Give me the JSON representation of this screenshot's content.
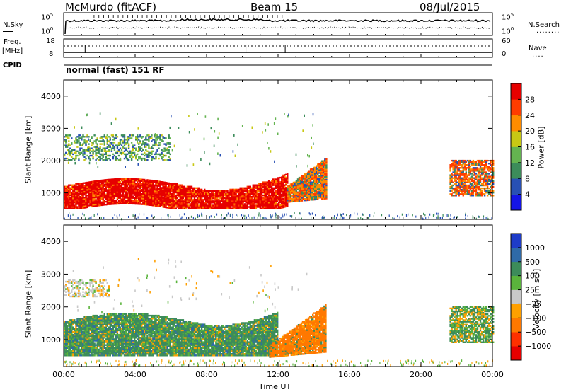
{
  "header": {
    "station": "McMurdo (fitACF)",
    "beam": "Beam 15",
    "date": "08/Jul/2015",
    "mode": "normal (fast) 151 RF"
  },
  "side_labels": {
    "nsky": "N.Sky",
    "nsearch": "N.Search",
    "freq": "Freq.",
    "mhz": "[MHz]",
    "cpid": "CPID",
    "nave": "Nave"
  },
  "noise_panel": {
    "left_ticks": [
      "10^5",
      "10^0"
    ],
    "right_ticks": [
      "10^5",
      "10^0"
    ]
  },
  "freq_panel": {
    "left_ticks": [
      "18",
      "8"
    ],
    "right_ticks": [
      "60",
      "0"
    ]
  },
  "chart_data": [
    {
      "type": "heatmap",
      "title": "",
      "ylabel": "Slant Range [km]",
      "xlabel": "",
      "ylim": [
        180,
        4500
      ],
      "xlim": [
        0,
        24
      ],
      "yticks": [
        "1000",
        "2000",
        "3000",
        "4000"
      ],
      "colorbar": {
        "label": "Power [dB]",
        "ticks": [
          "4",
          "8",
          "12",
          "16",
          "20",
          "24",
          "28"
        ],
        "colors": [
          "#1414e6",
          "#2850b4",
          "#3c8c5a",
          "#64b450",
          "#c8c814",
          "#ff8c00",
          "#ff3c00",
          "#e60000"
        ]
      },
      "echo_regions": [
        {
          "start": 0.0,
          "end": 12.5,
          "r_low": 500,
          "r_high": 1500,
          "value": "28"
        },
        {
          "start": 12.5,
          "end": 14.7,
          "r_low": 700,
          "r_high": 2200,
          "value": "20"
        },
        {
          "start": 0.0,
          "end": 6.0,
          "r_low": 2000,
          "r_high": 2800,
          "value": "12"
        },
        {
          "start": 21.6,
          "end": 24.0,
          "r_low": 900,
          "r_high": 2000,
          "value": "20"
        }
      ]
    },
    {
      "type": "heatmap",
      "title": "",
      "ylabel": "Slant Range [km]",
      "xlabel": "Time UT",
      "ylim": [
        180,
        4500
      ],
      "xlim": [
        0,
        24
      ],
      "yticks": [
        "1000",
        "2000",
        "3000",
        "4000"
      ],
      "xticks": [
        "00:00",
        "04:00",
        "08:00",
        "12:00",
        "16:00",
        "20:00",
        "00:00"
      ],
      "colorbar": {
        "label": "Velocity [m s⁻¹]",
        "ticks": [
          "1000",
          "500",
          "100",
          "25",
          "−25",
          "−100",
          "−500",
          "−1000"
        ],
        "colors": [
          "#1e3cc8",
          "#2f6aa8",
          "#3c8c5a",
          "#5ab43c",
          "#c8c8c8",
          "#ffa000",
          "#ff7800",
          "#ff3000",
          "#e60000"
        ]
      },
      "echo_regions": [
        {
          "start": 0.0,
          "end": 12.0,
          "r_low": 500,
          "r_high": 2000,
          "value": "-25 to 100"
        },
        {
          "start": 11.5,
          "end": 14.7,
          "r_low": 500,
          "r_high": 2100,
          "value": "-100"
        },
        {
          "start": 0.0,
          "end": 2.5,
          "r_low": 2300,
          "r_high": 2800,
          "value": "25"
        },
        {
          "start": 21.6,
          "end": 24.0,
          "r_low": 900,
          "r_high": 2000,
          "value": "100"
        }
      ]
    }
  ]
}
